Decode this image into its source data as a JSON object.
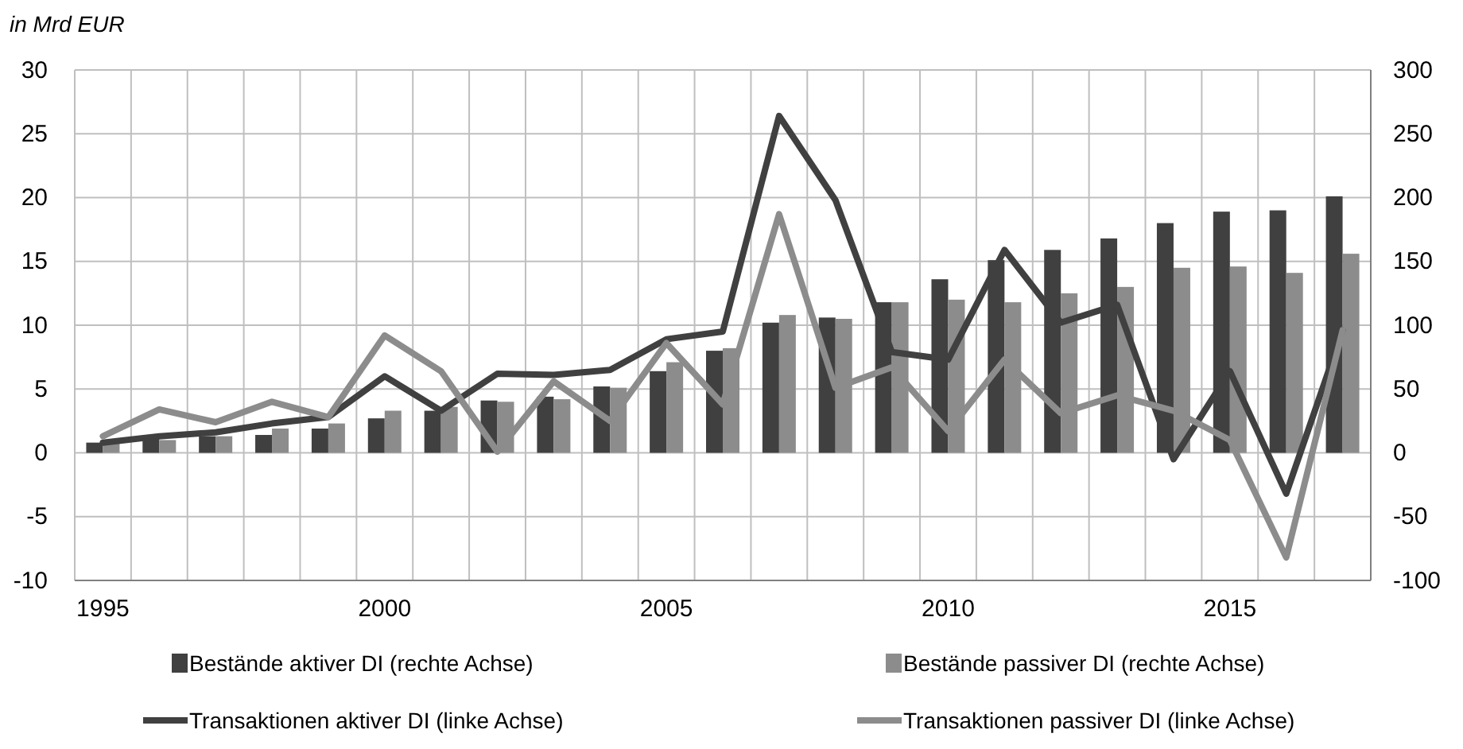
{
  "chart_data": {
    "type": "bar",
    "ylabel": "in Mrd EUR",
    "categories": [
      "1995",
      null,
      null,
      null,
      null,
      "2000",
      null,
      null,
      null,
      null,
      "2005",
      null,
      null,
      null,
      null,
      "2010",
      null,
      null,
      null,
      null,
      "2015",
      null,
      null
    ],
    "series": [
      {
        "name": "Bestände aktiver DI (rechte Achse)",
        "axis": "y2",
        "color": "#404040",
        "values": [
          8,
          12,
          13,
          14,
          19,
          27,
          33,
          41,
          44,
          52,
          64,
          80,
          102,
          106,
          118,
          136,
          151,
          159,
          168,
          180,
          189,
          190,
          201
        ]
      },
      {
        "name": "Bestände passiver DI (rechte Achse)",
        "axis": "y2",
        "color": "#8c8c8c",
        "values": [
          9,
          10,
          13,
          19,
          23,
          33,
          36,
          40,
          42,
          51,
          71,
          82,
          108,
          105,
          118,
          120,
          118,
          125,
          130,
          145,
          146,
          141,
          156
        ]
      },
      {
        "name": "Transaktionen aktiver DI (linke Achse)",
        "type": "line",
        "color": "#404040",
        "values": [
          0.8,
          1.3,
          1.6,
          2.3,
          2.8,
          6.0,
          3.3,
          6.2,
          6.1,
          6.5,
          8.9,
          9.5,
          26.4,
          19.8,
          7.9,
          7.3,
          15.9,
          10.2,
          11.6,
          -0.5,
          6.4,
          -3.2,
          9.6
        ]
      },
      {
        "name": "Transaktionen passiver DI (linke Achse)",
        "type": "line",
        "color": "#8c8c8c",
        "values": [
          1.3,
          3.4,
          2.4,
          4.0,
          2.8,
          9.2,
          6.4,
          0.1,
          5.6,
          2.5,
          8.6,
          3.8,
          18.7,
          5.1,
          6.7,
          1.7,
          7.3,
          3.1,
          4.5,
          3.3,
          1.0,
          -8.2,
          9.6
        ]
      }
    ],
    "ylim": [
      -10,
      30
    ],
    "yticks": [
      -10,
      -5,
      0,
      5,
      10,
      15,
      20,
      25,
      30
    ],
    "y2lim": [
      -100,
      300
    ],
    "y2ticks": [
      -100,
      -50,
      0,
      50,
      100,
      150,
      200,
      250,
      300
    ],
    "grid": true,
    "legend": "bottom"
  }
}
